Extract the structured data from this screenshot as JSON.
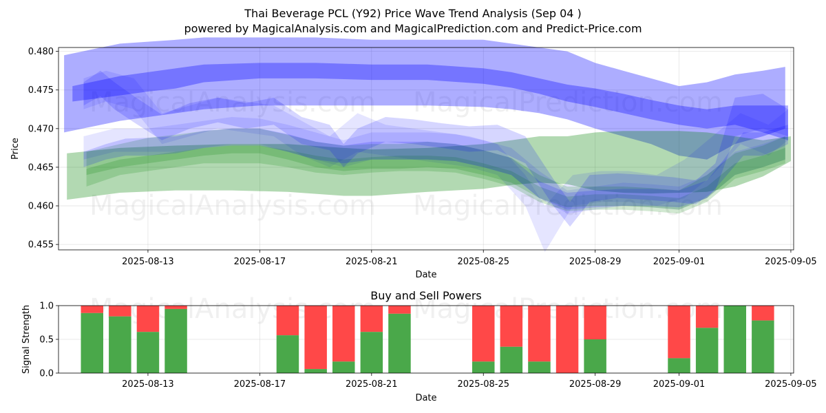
{
  "chart_data": [
    {
      "type": "area",
      "title": "Thai Beverage PCL (Y92) Price Wave Trend Analysis (Sep 04 )",
      "subtitle": "powered by MagicalAnalysis.com and MagicalPrediction.com and Predict-Price.com",
      "xlabel": "Date",
      "ylabel": "Price",
      "ylim": [
        0.4543,
        0.4805
      ],
      "x_range_days": [
        -3.2,
        23.1
      ],
      "x_ticks": [
        {
          "day": 0,
          "label": "2025-08-13"
        },
        {
          "day": 4,
          "label": "2025-08-17"
        },
        {
          "day": 8,
          "label": "2025-08-21"
        },
        {
          "day": 12,
          "label": "2025-08-25"
        },
        {
          "day": 16,
          "label": "2025-08-29"
        },
        {
          "day": 19,
          "label": "2025-09-01"
        },
        {
          "day": 23,
          "label": "2025-09-05"
        }
      ],
      "y_ticks": [
        {
          "value": 0.455,
          "label": "0.455"
        },
        {
          "value": 0.46,
          "label": "0.460"
        },
        {
          "value": 0.465,
          "label": "0.465"
        },
        {
          "value": 0.47,
          "label": "0.470"
        },
        {
          "value": 0.475,
          "label": "0.475"
        },
        {
          "value": 0.48,
          "label": "0.480"
        }
      ],
      "grid": true,
      "watermarks": [
        "MagicalAnalysis.com",
        "MagicalPrediction.com",
        "MagicalAnalysis.com",
        "MagicalPrediction.com"
      ],
      "series": [
        {
          "name": "blue-upper-wide-band",
          "color": "#0000ff",
          "opacity": 0.32,
          "x": [
            -3,
            -1,
            1,
            2,
            4,
            6,
            8,
            10,
            12,
            13,
            14,
            15,
            16,
            17,
            18,
            19,
            20,
            20.5,
            21,
            22,
            22.8
          ],
          "lower": [
            0.4695,
            0.471,
            0.472,
            0.4725,
            0.473,
            0.473,
            0.473,
            0.473,
            0.4728,
            0.4725,
            0.472,
            0.4712,
            0.47,
            0.469,
            0.468,
            0.4665,
            0.466,
            0.467,
            0.468,
            0.469,
            0.47
          ],
          "upper": [
            0.4795,
            0.481,
            0.4815,
            0.4818,
            0.4818,
            0.4818,
            0.4815,
            0.4815,
            0.4815,
            0.481,
            0.4805,
            0.48,
            0.4785,
            0.4775,
            0.4765,
            0.4755,
            0.476,
            0.4765,
            0.477,
            0.4775,
            0.478
          ]
        },
        {
          "name": "blue-upper-core-band",
          "color": "#0000ff",
          "opacity": 0.32,
          "x": [
            -2.7,
            -1,
            0,
            1,
            2,
            4,
            6,
            8,
            10,
            12,
            13,
            14,
            15,
            16,
            17,
            18,
            19,
            20,
            21,
            22,
            22.9
          ],
          "lower": [
            0.4735,
            0.4743,
            0.4748,
            0.4752,
            0.476,
            0.4765,
            0.4765,
            0.4763,
            0.4763,
            0.4758,
            0.4753,
            0.4745,
            0.4735,
            0.4728,
            0.472,
            0.4712,
            0.4705,
            0.47,
            0.4705,
            0.4695,
            0.4685
          ],
          "upper": [
            0.4755,
            0.4768,
            0.4773,
            0.4778,
            0.4783,
            0.4785,
            0.4785,
            0.4783,
            0.4783,
            0.4778,
            0.4773,
            0.4765,
            0.4757,
            0.4752,
            0.4745,
            0.4737,
            0.473,
            0.4725,
            0.473,
            0.473,
            0.473
          ]
        },
        {
          "name": "green-lower-wide-band",
          "color": "#008000",
          "opacity": 0.3,
          "x": [
            -2.9,
            -1,
            1,
            3,
            5,
            7,
            8,
            10,
            12,
            13,
            14,
            15,
            16,
            17,
            18,
            19,
            20,
            21,
            22,
            23
          ],
          "lower": [
            0.4608,
            0.4617,
            0.462,
            0.462,
            0.4618,
            0.4613,
            0.4613,
            0.4618,
            0.4622,
            0.4627,
            0.463,
            0.4628,
            0.462,
            0.4617,
            0.4616,
            0.4617,
            0.4618,
            0.4625,
            0.4638,
            0.4658
          ],
          "upper": [
            0.4668,
            0.4675,
            0.4678,
            0.468,
            0.468,
            0.4675,
            0.4673,
            0.4675,
            0.468,
            0.4685,
            0.469,
            0.469,
            0.4695,
            0.4697,
            0.4697,
            0.4697,
            0.4695,
            0.469,
            0.4685,
            0.469
          ]
        },
        {
          "name": "blue-wave-light-1",
          "color": "#0000ff",
          "opacity": 0.1,
          "x": [
            -2.3,
            -1.5,
            -0.5,
            0.5,
            1.5,
            2.5,
            3.5,
            4.5,
            5.5,
            6.5,
            7.5,
            8.5,
            9.5,
            10.5,
            11.5,
            12.5,
            13.5,
            14.2,
            15.2,
            16.2,
            17.2,
            18.2,
            19.2,
            20.2,
            21.2,
            22.2,
            22.9
          ],
          "lower": [
            0.4725,
            0.4735,
            0.4725,
            0.468,
            0.469,
            0.47,
            0.4695,
            0.469,
            0.4665,
            0.465,
            0.467,
            0.4665,
            0.466,
            0.4655,
            0.465,
            0.464,
            0.46,
            0.454,
            0.46,
            0.4605,
            0.4605,
            0.46,
            0.461,
            0.464,
            0.468,
            0.4665,
            0.4685
          ],
          "upper": [
            0.4765,
            0.4775,
            0.4765,
            0.472,
            0.473,
            0.474,
            0.4735,
            0.473,
            0.471,
            0.469,
            0.472,
            0.4705,
            0.47,
            0.4695,
            0.469,
            0.468,
            0.464,
            0.46,
            0.464,
            0.4645,
            0.4645,
            0.464,
            0.466,
            0.469,
            0.472,
            0.4705,
            0.4725
          ]
        },
        {
          "name": "blue-wave-light-2",
          "color": "#0000ff",
          "opacity": 0.1,
          "x": [
            -2.3,
            -1.2,
            0,
            1,
            2,
            3,
            4,
            5,
            6,
            7,
            8,
            9,
            10,
            11,
            12,
            13,
            14,
            15,
            16,
            17,
            18,
            19,
            20,
            21,
            22,
            22.8
          ],
          "lower": [
            0.466,
            0.467,
            0.467,
            0.467,
            0.4675,
            0.468,
            0.468,
            0.467,
            0.466,
            0.465,
            0.466,
            0.466,
            0.466,
            0.4658,
            0.465,
            0.464,
            0.461,
            0.459,
            0.4595,
            0.46,
            0.4598,
            0.4595,
            0.461,
            0.464,
            0.465,
            0.466
          ],
          "upper": [
            0.469,
            0.47,
            0.47,
            0.4705,
            0.471,
            0.4715,
            0.4713,
            0.4705,
            0.4695,
            0.4685,
            0.4695,
            0.4695,
            0.4695,
            0.4693,
            0.4685,
            0.4675,
            0.4645,
            0.462,
            0.4625,
            0.463,
            0.4628,
            0.4625,
            0.464,
            0.467,
            0.468,
            0.469
          ]
        },
        {
          "name": "green-wave-1",
          "color": "#008000",
          "opacity": 0.18,
          "x": [
            -2.2,
            -1,
            0,
            1,
            2,
            3,
            4,
            5,
            6,
            7,
            8,
            9,
            10,
            11,
            12,
            13,
            14,
            15,
            16,
            17,
            18,
            19,
            20,
            21,
            22,
            22.8
          ],
          "lower": [
            0.464,
            0.465,
            0.4655,
            0.466,
            0.4665,
            0.4668,
            0.4668,
            0.466,
            0.465,
            0.4645,
            0.4648,
            0.4648,
            0.465,
            0.4648,
            0.464,
            0.463,
            0.461,
            0.4598,
            0.46,
            0.46,
            0.4598,
            0.4595,
            0.461,
            0.464,
            0.465,
            0.466
          ],
          "upper": [
            0.467,
            0.468,
            0.4688,
            0.4692,
            0.4697,
            0.47,
            0.47,
            0.4692,
            0.4683,
            0.4678,
            0.468,
            0.468,
            0.4683,
            0.468,
            0.4672,
            0.4662,
            0.464,
            0.4625,
            0.4625,
            0.4625,
            0.4623,
            0.462,
            0.464,
            0.4668,
            0.4678,
            0.469
          ]
        },
        {
          "name": "green-wave-2",
          "color": "#008000",
          "opacity": 0.18,
          "x": [
            -2.2,
            -1,
            0,
            1,
            2,
            3,
            4,
            5,
            6,
            7,
            8,
            9,
            10,
            11,
            12,
            13,
            14,
            15,
            16,
            17,
            18,
            19,
            20,
            21,
            22,
            22.8
          ],
          "lower": [
            0.4625,
            0.464,
            0.4645,
            0.465,
            0.4655,
            0.4655,
            0.4655,
            0.465,
            0.4643,
            0.464,
            0.4643,
            0.4645,
            0.4645,
            0.4643,
            0.4635,
            0.4625,
            0.4605,
            0.4593,
            0.4595,
            0.4595,
            0.4593,
            0.459,
            0.4605,
            0.4635,
            0.4645,
            0.4655
          ],
          "upper": [
            0.4648,
            0.466,
            0.4665,
            0.467,
            0.4675,
            0.4678,
            0.4678,
            0.4672,
            0.4665,
            0.466,
            0.4663,
            0.4665,
            0.4665,
            0.4663,
            0.4655,
            0.4645,
            0.4625,
            0.4612,
            0.4615,
            0.4615,
            0.4613,
            0.461,
            0.4625,
            0.4655,
            0.4665,
            0.4675
          ]
        },
        {
          "name": "blue-wave-medium-1",
          "color": "#0000ff",
          "opacity": 0.16,
          "x": [
            -2.3,
            -1.7,
            -1.2,
            -0.5,
            0.5,
            1.5,
            2.5,
            3.5,
            4.5,
            5.5,
            6.5,
            7,
            7.5,
            8.5,
            9.5,
            10.5,
            11.5,
            12.5,
            13.5,
            14.5,
            15.1,
            15.8,
            16.8,
            17.8,
            18.8,
            19.6,
            20.3,
            21,
            22,
            22.9
          ],
          "lower": [
            0.473,
            0.4742,
            0.4725,
            0.4708,
            0.4685,
            0.47,
            0.4708,
            0.47,
            0.4705,
            0.468,
            0.4672,
            0.465,
            0.4668,
            0.4683,
            0.468,
            0.4675,
            0.467,
            0.4672,
            0.4655,
            0.46,
            0.4573,
            0.4605,
            0.461,
            0.4608,
            0.4605,
            0.4602,
            0.462,
            0.469,
            0.47,
            0.469
          ],
          "upper": [
            0.476,
            0.4775,
            0.476,
            0.4742,
            0.4718,
            0.4733,
            0.474,
            0.4733,
            0.474,
            0.4715,
            0.4705,
            0.468,
            0.47,
            0.4715,
            0.4712,
            0.4707,
            0.4703,
            0.4705,
            0.469,
            0.4635,
            0.4605,
            0.464,
            0.4642,
            0.464,
            0.4637,
            0.4633,
            0.4655,
            0.474,
            0.4745,
            0.4725
          ]
        },
        {
          "name": "blue-wave-medium-2",
          "color": "#0000ff",
          "opacity": 0.16,
          "x": [
            -2.3,
            -1.5,
            -0.8,
            0,
            1,
            2,
            3,
            4,
            5,
            6,
            7,
            8,
            9,
            10,
            11,
            12,
            13,
            14,
            15,
            16,
            17,
            18,
            19,
            20,
            20.6,
            21.3,
            22,
            22.9
          ],
          "lower": [
            0.465,
            0.466,
            0.4665,
            0.4665,
            0.4668,
            0.4675,
            0.4678,
            0.4678,
            0.467,
            0.466,
            0.4655,
            0.466,
            0.466,
            0.466,
            0.4658,
            0.465,
            0.464,
            0.461,
            0.4595,
            0.4598,
            0.46,
            0.46,
            0.4598,
            0.461,
            0.4635,
            0.4665,
            0.4665,
            0.468
          ],
          "upper": [
            0.467,
            0.468,
            0.4687,
            0.4688,
            0.469,
            0.4697,
            0.47,
            0.47,
            0.4693,
            0.4683,
            0.4678,
            0.4683,
            0.4683,
            0.4683,
            0.468,
            0.4672,
            0.4662,
            0.4632,
            0.4617,
            0.462,
            0.4622,
            0.4622,
            0.462,
            0.4633,
            0.466,
            0.4695,
            0.4695,
            0.4705
          ]
        }
      ]
    },
    {
      "type": "bar",
      "title": "Buy and Sell Powers",
      "xlabel": "Date",
      "ylabel": "Signal Strength",
      "ylim": [
        0,
        1.0
      ],
      "x_range_days": [
        -3.2,
        23.1
      ],
      "x_ticks": [
        {
          "day": 0,
          "label": "2025-08-13"
        },
        {
          "day": 4,
          "label": "2025-08-17"
        },
        {
          "day": 8,
          "label": "2025-08-21"
        },
        {
          "day": 12,
          "label": "2025-08-25"
        },
        {
          "day": 16,
          "label": "2025-08-29"
        },
        {
          "day": 19,
          "label": "2025-09-01"
        },
        {
          "day": 23,
          "label": "2025-09-05"
        }
      ],
      "y_ticks": [
        {
          "value": 0.0,
          "label": "0.0"
        },
        {
          "value": 0.5,
          "label": "0.5"
        },
        {
          "value": 1.0,
          "label": "1.0"
        }
      ],
      "grid": true,
      "watermarks": [
        "MagicalAnalysis.com",
        "MagicalPrediction.com"
      ],
      "buy_color": "#4aa84a",
      "sell_color": "#ff4848",
      "bars": [
        {
          "day": -2,
          "buy": 0.89
        },
        {
          "day": -1,
          "buy": 0.84
        },
        {
          "day": 0,
          "buy": 0.61
        },
        {
          "day": 1,
          "buy": 0.95
        },
        {
          "day": 5,
          "buy": 0.56
        },
        {
          "day": 6,
          "buy": 0.06
        },
        {
          "day": 7,
          "buy": 0.17
        },
        {
          "day": 8,
          "buy": 0.61
        },
        {
          "day": 9,
          "buy": 0.88
        },
        {
          "day": 12,
          "buy": 0.17
        },
        {
          "day": 13,
          "buy": 0.39
        },
        {
          "day": 14,
          "buy": 0.17
        },
        {
          "day": 15,
          "buy": 0.0
        },
        {
          "day": 16,
          "buy": 0.5
        },
        {
          "day": 19,
          "buy": 0.22
        },
        {
          "day": 20,
          "buy": 0.67
        },
        {
          "day": 21,
          "buy": 1.0
        },
        {
          "day": 22,
          "buy": 0.78
        }
      ]
    }
  ]
}
